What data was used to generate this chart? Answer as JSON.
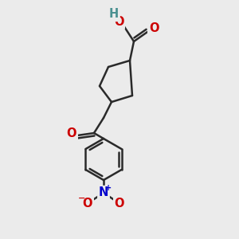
{
  "bg_color": "#ebebeb",
  "bond_color": "#2a2a2a",
  "bond_width": 1.8,
  "atom_colors": {
    "O": "#cc0000",
    "N": "#0000cc",
    "H": "#4a9090",
    "C": "#2a2a2a"
  },
  "font_size": 10.5,
  "small_font_size": 8.5
}
